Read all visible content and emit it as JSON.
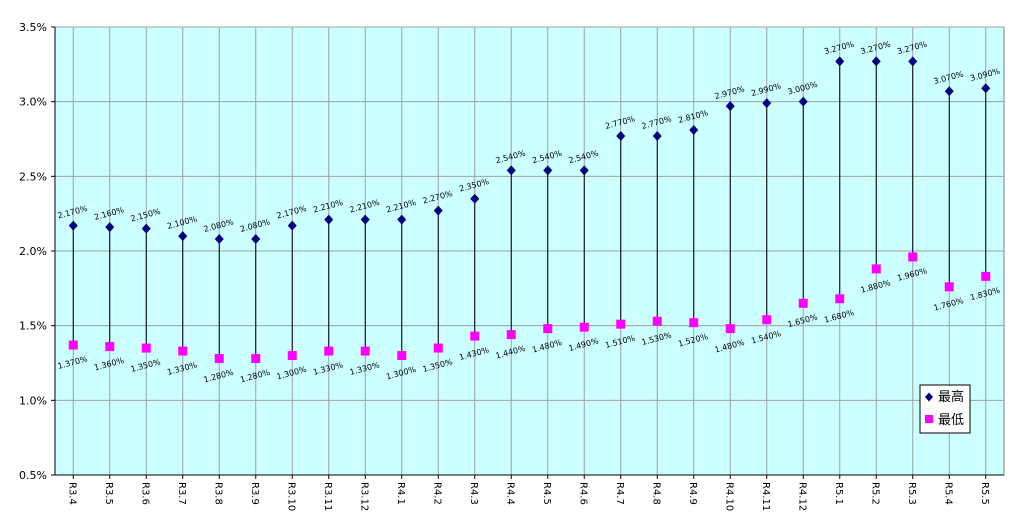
{
  "chart_data": {
    "type": "scatter",
    "categories": [
      "R3.4",
      "R3.5",
      "R3.6",
      "R3.7",
      "R3.8",
      "R3.9",
      "R3.10",
      "R3.11",
      "R3.12",
      "R4.1",
      "R4.2",
      "R4.3",
      "R4.4",
      "R4.5",
      "R4.6",
      "R4.7",
      "R4.8",
      "R4.9",
      "R4.10",
      "R4.11",
      "R4.12",
      "R5.1",
      "R5.2",
      "R5.3",
      "R5.4",
      "R5.5"
    ],
    "series": [
      {
        "name": "最高",
        "color": "#000080",
        "marker": "diamond",
        "values": [
          2.17,
          2.16,
          2.15,
          2.1,
          2.08,
          2.08,
          2.17,
          2.21,
          2.21,
          2.21,
          2.27,
          2.35,
          2.54,
          2.54,
          2.54,
          2.77,
          2.77,
          2.81,
          2.97,
          2.99,
          3.0,
          3.27,
          3.27,
          3.27,
          3.07,
          3.09
        ],
        "labels": [
          "2.170%",
          "2.160%",
          "2.150%",
          "2.100%",
          "2.080%",
          "2.080%",
          "2.170%",
          "2.210%",
          "2.210%",
          "2.210%",
          "2.270%",
          "2.350%",
          "2.540%",
          "2.540%",
          "2.540%",
          "2.770%",
          "2.770%",
          "2.810%",
          "2.970%",
          "2.990%",
          "3.000%",
          "3.270%",
          "3.270%",
          "3.270%",
          "3.070%",
          "3.090%"
        ]
      },
      {
        "name": "最低",
        "color": "#ff00ff",
        "marker": "square",
        "values": [
          1.37,
          1.36,
          1.35,
          1.33,
          1.28,
          1.28,
          1.3,
          1.33,
          1.33,
          1.3,
          1.35,
          1.43,
          1.44,
          1.48,
          1.49,
          1.51,
          1.53,
          1.52,
          1.48,
          1.54,
          1.65,
          1.68,
          1.88,
          1.96,
          1.76,
          1.83
        ],
        "labels": [
          "1.370%",
          "1.360%",
          "1.350%",
          "1.330%",
          "1.280%",
          "1.280%",
          "1.300%",
          "1.330%",
          "1.330%",
          "1.300%",
          "1.350%",
          "1.430%",
          "1.440%",
          "1.480%",
          "1.490%",
          "1.510%",
          "1.530%",
          "1.520%",
          "1.480%",
          "1.540%",
          "1.650%",
          "1.680%",
          "1.880%",
          "1.960%",
          "1.760%",
          "1.830%"
        ]
      }
    ],
    "ylim": [
      0.5,
      3.5
    ],
    "yticks": [
      0.5,
      1.0,
      1.5,
      2.0,
      2.5,
      3.0,
      3.5
    ],
    "ytick_labels": [
      "0.5%",
      "1.0%",
      "1.5%",
      "2.0%",
      "2.5%",
      "3.0%",
      "3.5%"
    ],
    "grid": true,
    "plot_background": "#ccffff",
    "legend_position": "bottom-right"
  }
}
